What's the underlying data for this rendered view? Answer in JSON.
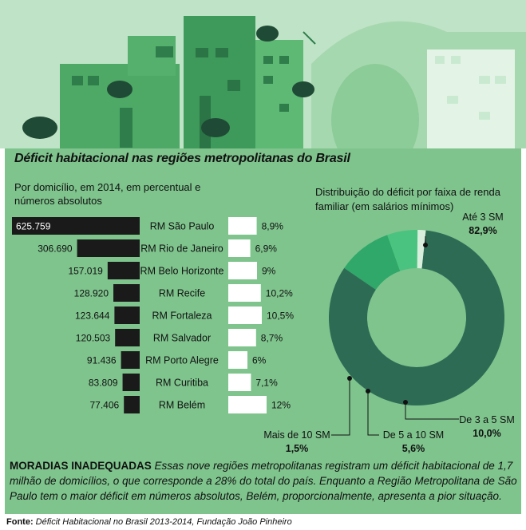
{
  "colors": {
    "panel": "#7fc48d",
    "bar_absolute": "#1a1a1a",
    "bar_percent": "#ffffff",
    "donut_main": "#2e6b55",
    "donut_3_5": "#2fa86a",
    "donut_5_10": "#49c37f",
    "donut_over_10": "#d9eedd"
  },
  "chart_data": [
    {
      "type": "bar",
      "title": "Déficit habitacional nas regiões metropolitanas do Brasil",
      "subtitle": "Por domicílio, em 2014, em percentual e números absolutos",
      "categories": [
        "RM São Paulo",
        "RM Rio de Janeiro",
        "RM Belo Horizonte",
        "RM Recife",
        "RM Fortaleza",
        "RM Salvador",
        "RM Porto Alegre",
        "RM Curitiba",
        "RM Belém"
      ],
      "series": [
        {
          "values": [
            625759,
            306690,
            157019,
            128920,
            123644,
            120503,
            91436,
            83809,
            77406
          ],
          "labels": [
            "625.759",
            "306.690",
            "157.019",
            "128.920",
            "123.644",
            "120.503",
            "91.436",
            "83.809",
            "77.406"
          ]
        },
        {
          "values": [
            8.9,
            6.9,
            9,
            10.2,
            10.5,
            8.7,
            6,
            7.1,
            12
          ],
          "labels": [
            "8,9%",
            "6,9%",
            "9%",
            "10,2%",
            "10,5%",
            "8,7%",
            "6%",
            "7,1%",
            "12%"
          ]
        }
      ]
    },
    {
      "type": "pie",
      "subtitle": "Distribuição do déficit por faixa de renda familiar (em salários mínimos)",
      "slices": [
        {
          "label": "Até 3 SM",
          "value": 82.9,
          "value_label": "82,9%"
        },
        {
          "label": "De 3 a 5 SM",
          "value": 10.0,
          "value_label": "10,0%"
        },
        {
          "label": "De 5 a 10 SM",
          "value": 5.6,
          "value_label": "5,6%"
        },
        {
          "label": "Mais de 10 SM",
          "value": 1.5,
          "value_label": "1,5%"
        }
      ]
    }
  ],
  "footer": {
    "lead": "MORADIAS INADEQUADAS",
    "body": "Essas nove regiões metropolitanas registram um déficit habitacional de 1,7 milhão de domicílios, o que corresponde a 28% do total do país. Enquanto a Região Metropolitana de São Paulo tem o maior déficit em números absolutos, Belém, proporcionalmente, apresenta a pior situação."
  },
  "source": {
    "label": "Fonte:",
    "text": "Déficit Habitacional no Brasil 2013-2014, Fundação João Pinheiro"
  }
}
